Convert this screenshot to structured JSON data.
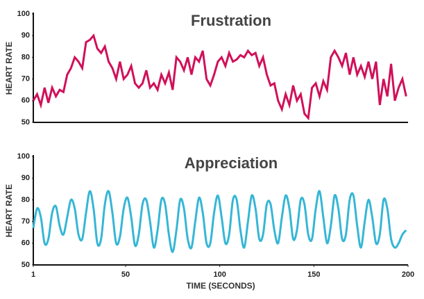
{
  "chart_data": [
    {
      "type": "line",
      "title": "Frustration",
      "ylabel": "HEART RATE",
      "x": [
        1,
        3,
        5,
        7,
        9,
        11,
        13,
        15,
        17,
        19,
        21,
        23,
        25,
        27,
        29,
        31,
        33,
        35,
        37,
        39,
        41,
        43,
        45,
        47,
        49,
        51,
        53,
        55,
        57,
        59,
        61,
        63,
        65,
        67,
        69,
        71,
        73,
        75,
        77,
        79,
        81,
        83,
        85,
        87,
        89,
        91,
        93,
        95,
        97,
        99,
        101,
        103,
        105,
        107,
        109,
        111,
        113,
        115,
        117,
        119,
        121,
        123,
        125,
        127,
        129,
        131,
        133,
        135,
        137,
        139,
        141,
        143,
        145,
        147,
        149,
        151,
        153,
        155,
        157,
        159,
        161,
        163,
        165,
        167,
        169,
        171,
        173,
        175,
        177,
        179,
        181,
        183,
        185,
        187,
        189,
        191,
        193,
        195,
        197,
        199
      ],
      "series": [
        {
          "name": "Frustration",
          "color": "#d0105a",
          "values": [
            60,
            63,
            58,
            66,
            59,
            66,
            62,
            65,
            64,
            72,
            75,
            80,
            78,
            75,
            87,
            88,
            90,
            84,
            82,
            85,
            78,
            75,
            70,
            78,
            70,
            72,
            76,
            68,
            66,
            68,
            74,
            66,
            68,
            65,
            72,
            68,
            73,
            65,
            80,
            78,
            74,
            80,
            72,
            80,
            78,
            83,
            70,
            67,
            72,
            78,
            80,
            76,
            82,
            78,
            79,
            81,
            80,
            83,
            81,
            82,
            76,
            80,
            72,
            67,
            68,
            60,
            56,
            63,
            58,
            67,
            60,
            63,
            54,
            52,
            66,
            68,
            62,
            69,
            65,
            80,
            83,
            80,
            76,
            82,
            72,
            80,
            72,
            76,
            71,
            78,
            70,
            78,
            58,
            70,
            62,
            77,
            60,
            66,
            70,
            62
          ]
        }
      ],
      "xlim": [
        1,
        200
      ],
      "ylim": [
        50,
        100
      ],
      "yticks": [
        50,
        60,
        70,
        80,
        90,
        100
      ]
    },
    {
      "type": "line",
      "title": "Appreciation",
      "ylabel": "HEART RATE",
      "xlabel": "TIME (SECONDS)",
      "x": [
        1,
        3,
        5,
        7,
        9,
        11,
        13,
        15,
        17,
        19,
        21,
        23,
        25,
        27,
        29,
        31,
        33,
        35,
        37,
        39,
        41,
        43,
        45,
        47,
        49,
        51,
        53,
        55,
        57,
        59,
        61,
        63,
        65,
        67,
        69,
        71,
        73,
        75,
        77,
        79,
        81,
        83,
        85,
        87,
        89,
        91,
        93,
        95,
        97,
        99,
        101,
        103,
        105,
        107,
        109,
        111,
        113,
        115,
        117,
        119,
        121,
        123,
        125,
        127,
        129,
        131,
        133,
        135,
        137,
        139,
        141,
        143,
        145,
        147,
        149,
        151,
        153,
        155,
        157,
        159,
        161,
        163,
        165,
        167,
        169,
        171,
        173,
        175,
        177,
        179,
        181,
        183,
        185,
        187,
        189,
        191,
        193,
        195,
        197,
        199
      ],
      "series": [
        {
          "name": "Appreciation",
          "color": "#35b6d6",
          "values": [
            67,
            76,
            72,
            60,
            62,
            74,
            77,
            68,
            64,
            72,
            80,
            76,
            64,
            62,
            74,
            84,
            76,
            60,
            62,
            78,
            84,
            74,
            60,
            63,
            76,
            81,
            72,
            59,
            64,
            78,
            80,
            70,
            58,
            66,
            80,
            78,
            64,
            56,
            66,
            80,
            76,
            62,
            58,
            70,
            81,
            74,
            60,
            60,
            74,
            82,
            72,
            60,
            64,
            80,
            80,
            66,
            58,
            70,
            82,
            76,
            62,
            64,
            78,
            78,
            66,
            60,
            72,
            82,
            76,
            62,
            66,
            80,
            78,
            64,
            62,
            76,
            84,
            72,
            60,
            68,
            82,
            76,
            62,
            64,
            80,
            82,
            68,
            58,
            70,
            80,
            72,
            60,
            64,
            80,
            76,
            62,
            58,
            60,
            64,
            66
          ]
        }
      ],
      "xlim": [
        1,
        200
      ],
      "xticks": [
        1,
        50,
        100,
        150,
        200
      ],
      "ylim": [
        50,
        100
      ],
      "yticks": [
        50,
        60,
        70,
        80,
        90,
        100
      ]
    }
  ]
}
